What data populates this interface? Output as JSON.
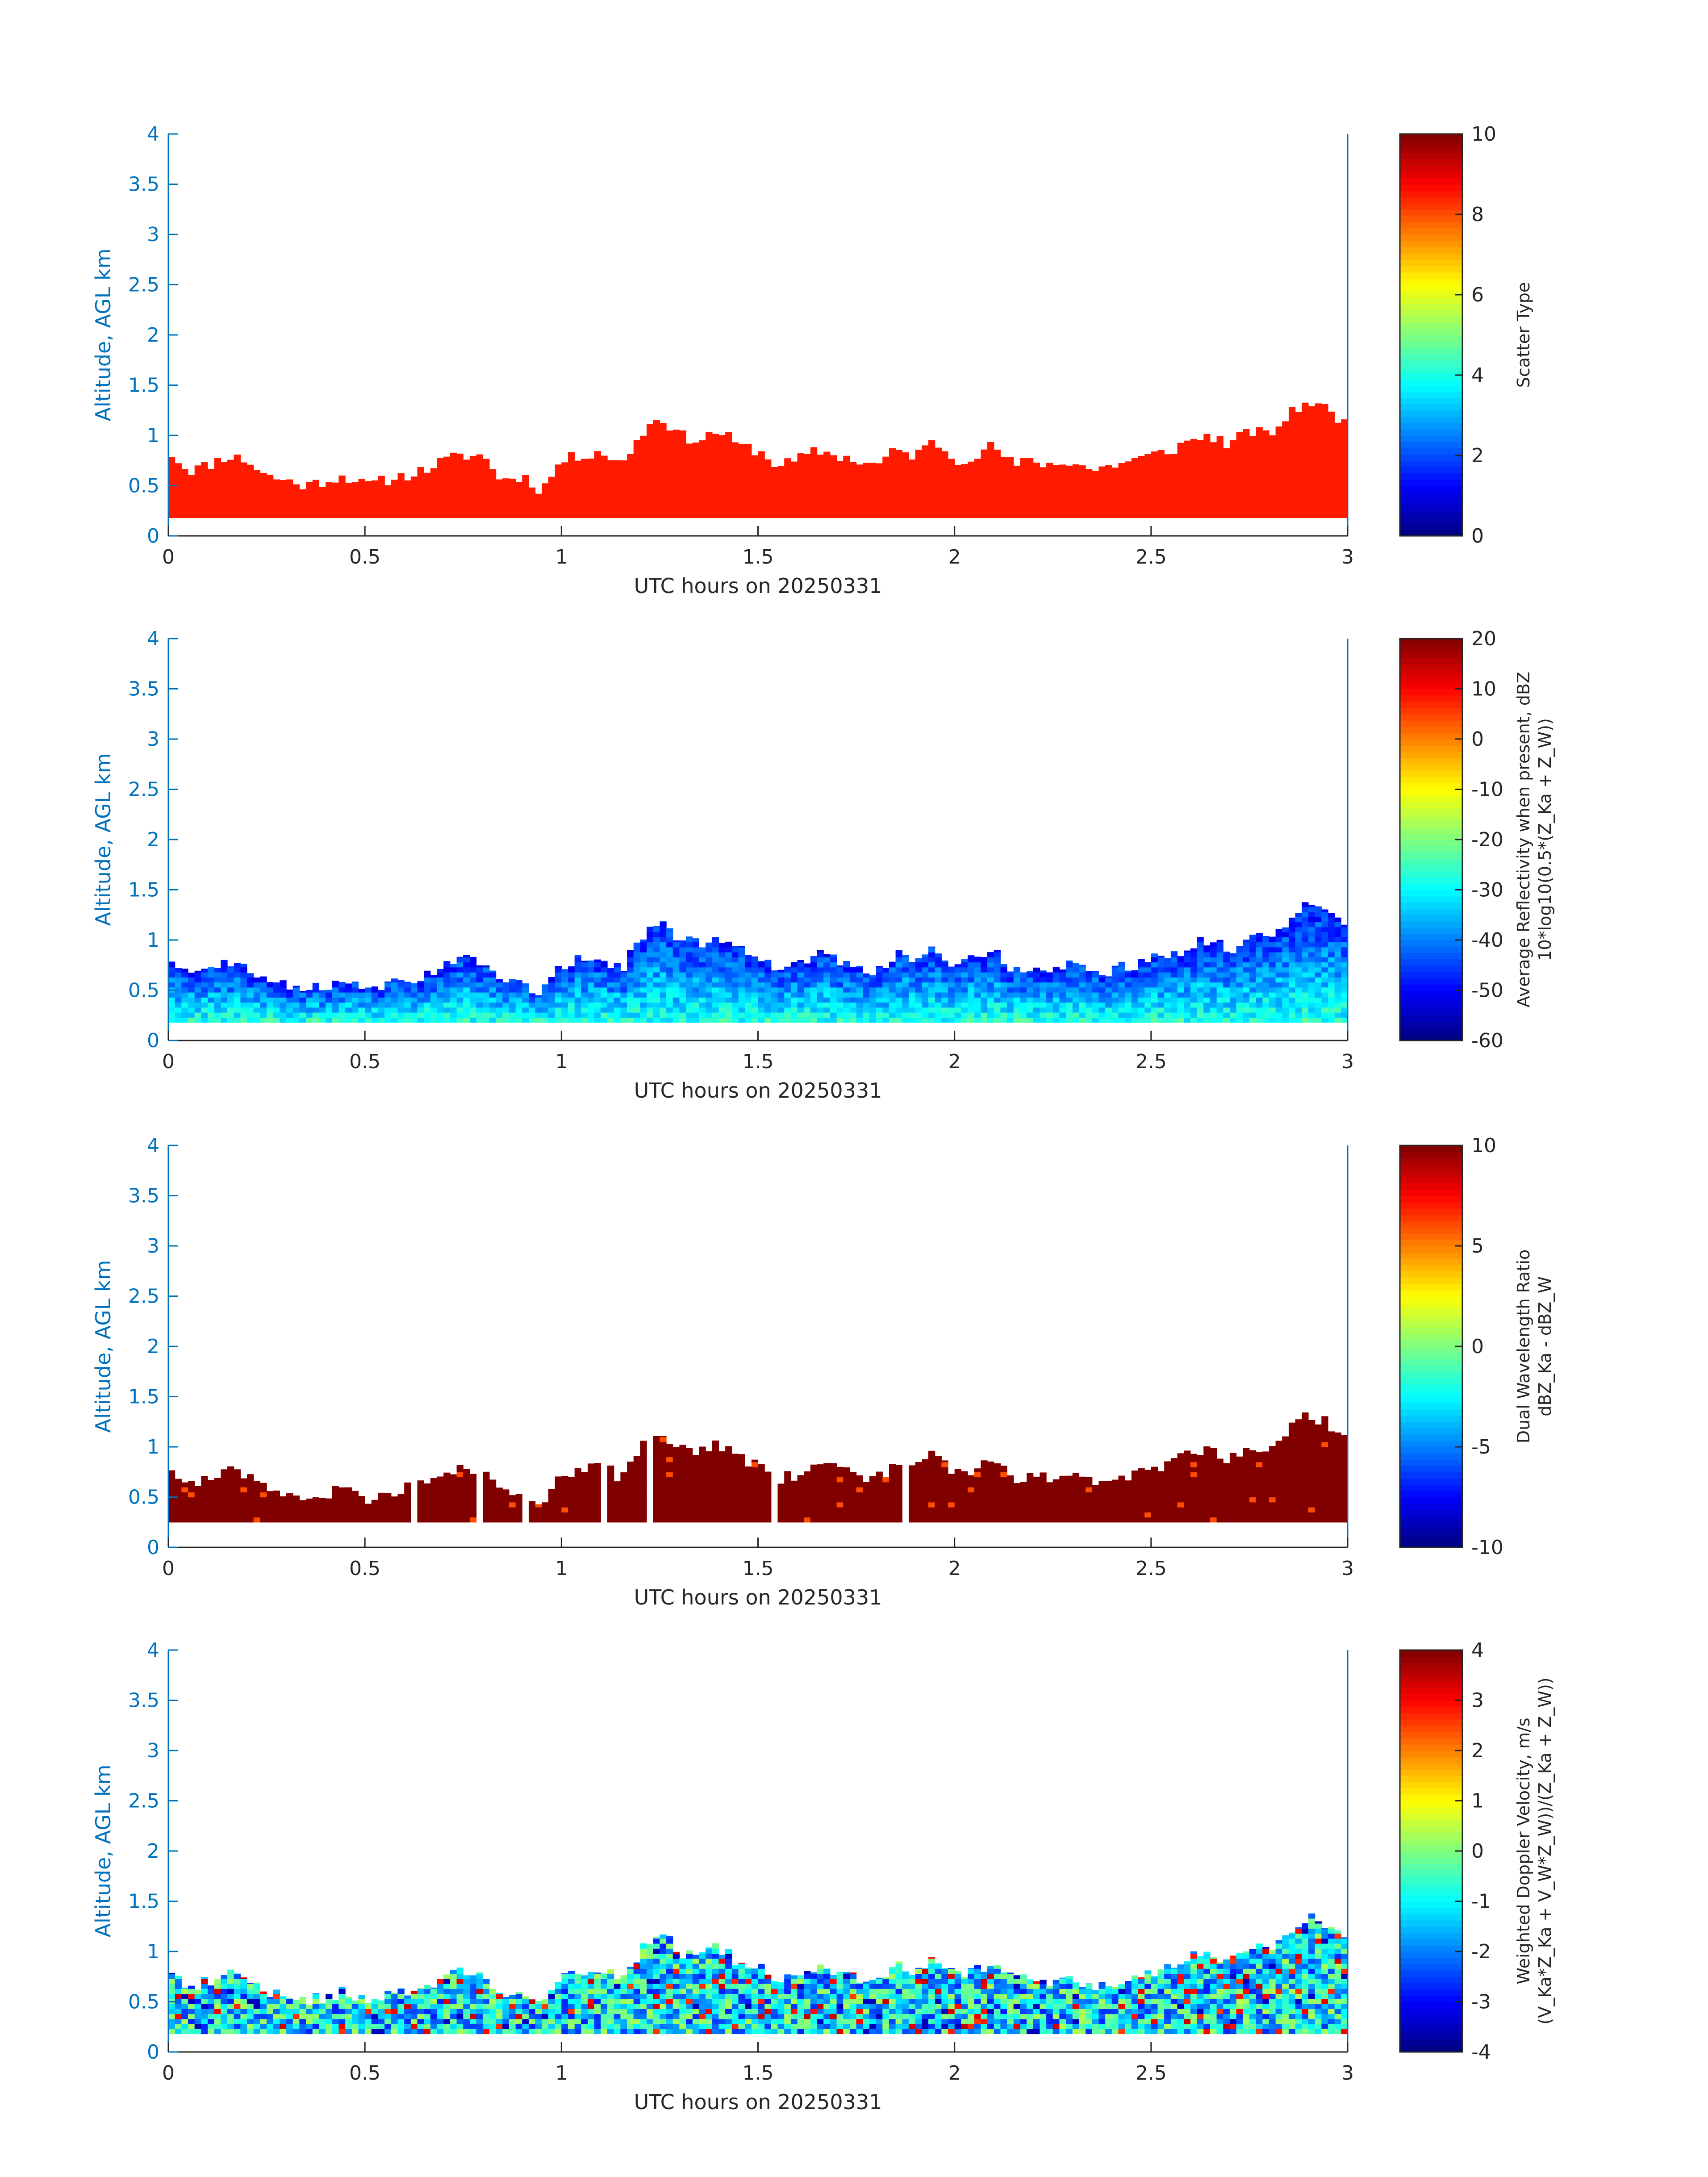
{
  "figure": {
    "background": "#ffffff",
    "axis_color": "#0072BD",
    "text_color": "#262626"
  },
  "chart_data": [
    {
      "type": "heatmap",
      "xlabel": "UTC hours on 20250331",
      "ylabel": "Altitude, AGL km",
      "xlim": [
        0,
        3
      ],
      "ylim": [
        0,
        4
      ],
      "xticks": [
        "0",
        "0.5",
        "1",
        "1.5",
        "2",
        "2.5",
        "3"
      ],
      "yticks": [
        "0",
        "0.5",
        "1",
        "1.5",
        "2",
        "2.5",
        "3",
        "3.5",
        "4"
      ],
      "colormap": "jet",
      "clim": [
        0,
        10
      ],
      "colorbar_label": "Scatter Type",
      "colorbar_sublabel": "",
      "colorbar_ticks": [
        "0",
        "2",
        "4",
        "6",
        "8",
        "10"
      ],
      "layer_base_km": 0.18,
      "dominant_value": 8.5,
      "field": "scatter",
      "seed": 11
    },
    {
      "type": "heatmap",
      "xlabel": "UTC hours on 20250331",
      "ylabel": "Altitude, AGL km",
      "xlim": [
        0,
        3
      ],
      "ylim": [
        0,
        4
      ],
      "xticks": [
        "0",
        "0.5",
        "1",
        "1.5",
        "2",
        "2.5",
        "3"
      ],
      "yticks": [
        "0",
        "0.5",
        "1",
        "1.5",
        "2",
        "2.5",
        "3",
        "3.5",
        "4"
      ],
      "colormap": "jet",
      "clim": [
        -60,
        20
      ],
      "colorbar_label": "Average Reflectivity when present, dBZ",
      "colorbar_sublabel": "10*log10(0.5*(Z_Ka + Z_W))",
      "colorbar_ticks": [
        "-60",
        "-50",
        "-40",
        "-30",
        "-20",
        "-10",
        "0",
        "10",
        "20"
      ],
      "layer_base_km": 0.18,
      "field": "reflectivity",
      "seed": 23
    },
    {
      "type": "heatmap",
      "xlabel": "UTC hours on 20250331",
      "ylabel": "Altitude, AGL km",
      "xlim": [
        0,
        3
      ],
      "ylim": [
        0,
        4
      ],
      "xticks": [
        "0",
        "0.5",
        "1",
        "1.5",
        "2",
        "2.5",
        "3"
      ],
      "yticks": [
        "0",
        "0.5",
        "1",
        "1.5",
        "2",
        "2.5",
        "3",
        "3.5",
        "4"
      ],
      "colormap": "jet",
      "clim": [
        -10,
        10
      ],
      "colorbar_label": "Dual Wavelength Ratio",
      "colorbar_sublabel": "dBZ_Ka - dBZ_W",
      "colorbar_ticks": [
        "-10",
        "-5",
        "0",
        "5",
        "10"
      ],
      "layer_base_km": 0.25,
      "field": "dwr",
      "seed": 37
    },
    {
      "type": "heatmap",
      "xlabel": "UTC hours on 20250331",
      "ylabel": "Altitude, AGL km",
      "xlim": [
        0,
        3
      ],
      "ylim": [
        0,
        4
      ],
      "xticks": [
        "0",
        "0.5",
        "1",
        "1.5",
        "2",
        "2.5",
        "3"
      ],
      "yticks": [
        "0",
        "0.5",
        "1",
        "1.5",
        "2",
        "2.5",
        "3",
        "3.5",
        "4"
      ],
      "colormap": "jet",
      "clim": [
        -4,
        4
      ],
      "colorbar_label": "Weighted Doppler Velocity, m/s",
      "colorbar_sublabel": "(V_Ka*Z_Ka + V_W*Z_W))/(Z_Ka + Z_W))",
      "colorbar_ticks": [
        "-4",
        "-3",
        "-2",
        "-1",
        "0",
        "1",
        "2",
        "3",
        "4"
      ],
      "layer_base_km": 0.18,
      "field": "velocity",
      "seed": 51
    }
  ],
  "cloud_top_profile": {
    "x_hours": [
      0,
      0.05,
      0.1,
      0.15,
      0.2,
      0.25,
      0.3,
      0.35,
      0.4,
      0.45,
      0.5,
      0.55,
      0.6,
      0.65,
      0.7,
      0.75,
      0.8,
      0.85,
      0.9,
      0.95,
      1.0,
      1.05,
      1.1,
      1.15,
      1.2,
      1.25,
      1.3,
      1.35,
      1.4,
      1.45,
      1.5,
      1.55,
      1.6,
      1.65,
      1.7,
      1.75,
      1.8,
      1.85,
      1.9,
      1.95,
      2.0,
      2.05,
      2.1,
      2.15,
      2.2,
      2.25,
      2.3,
      2.35,
      2.4,
      2.45,
      2.5,
      2.55,
      2.6,
      2.65,
      2.7,
      2.75,
      2.8,
      2.85,
      2.9,
      2.95,
      3.0
    ],
    "top_km": [
      0.85,
      0.65,
      0.7,
      0.8,
      0.75,
      0.6,
      0.55,
      0.5,
      0.55,
      0.6,
      0.5,
      0.55,
      0.6,
      0.65,
      0.75,
      0.8,
      0.8,
      0.55,
      0.6,
      0.45,
      0.75,
      0.8,
      0.85,
      0.7,
      1.0,
      1.2,
      1.0,
      0.95,
      1.05,
      0.9,
      0.85,
      0.7,
      0.75,
      0.85,
      0.8,
      0.75,
      0.7,
      0.85,
      0.8,
      0.95,
      0.75,
      0.8,
      0.9,
      0.7,
      0.75,
      0.7,
      0.75,
      0.65,
      0.7,
      0.75,
      0.8,
      0.85,
      0.95,
      1.0,
      0.9,
      1.05,
      1.0,
      1.2,
      1.35,
      1.25,
      1.1
    ]
  }
}
